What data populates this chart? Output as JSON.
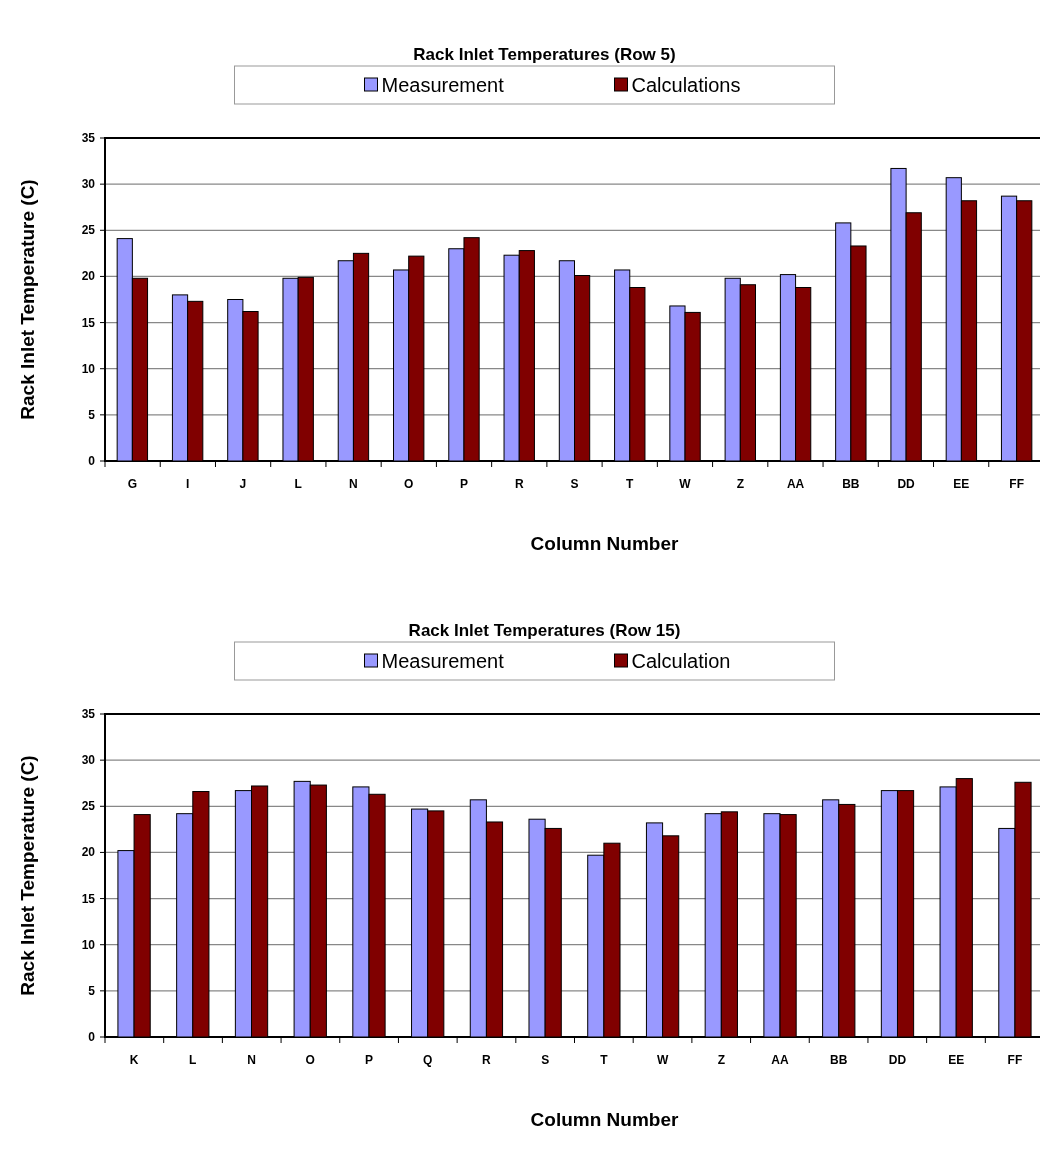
{
  "chart_data": [
    {
      "type": "bar",
      "title": "Rack Inlet Temperatures (Row 5)",
      "xlabel": "Column Number",
      "ylabel": "Rack Inlet Temperature (C)",
      "categories": [
        "G",
        "I",
        "J",
        "L",
        "N",
        "O",
        "P",
        "R",
        "S",
        "T",
        "W",
        "Z",
        "AA",
        "BB",
        "DD",
        "EE",
        "FF"
      ],
      "series": [
        {
          "name": "Measurement",
          "color": "#9999ff",
          "values": [
            24.1,
            18.0,
            17.5,
            19.8,
            21.7,
            20.7,
            23.0,
            22.3,
            21.7,
            20.7,
            16.8,
            19.8,
            20.2,
            25.8,
            31.7,
            30.7,
            28.7
          ]
        },
        {
          "name": "Calculations",
          "color": "#800000",
          "values": [
            19.8,
            17.3,
            16.2,
            19.9,
            22.5,
            22.2,
            24.2,
            22.8,
            20.1,
            18.8,
            16.1,
            19.1,
            18.8,
            23.3,
            26.9,
            28.2,
            28.2
          ]
        }
      ],
      "ylim": [
        0,
        35
      ],
      "yticks": [
        0,
        5,
        10,
        15,
        20,
        25,
        30,
        35
      ],
      "grid": "y",
      "legend": "top"
    },
    {
      "type": "bar",
      "title": "Rack Inlet Temperatures (Row 15)",
      "xlabel": "Column Number",
      "ylabel": "Rack Inlet Temperature (C)",
      "categories": [
        "K",
        "L",
        "N",
        "O",
        "P",
        "Q",
        "R",
        "S",
        "T",
        "W",
        "Z",
        "AA",
        "BB",
        "DD",
        "EE",
        "FF"
      ],
      "series": [
        {
          "name": "Measurement",
          "color": "#9999ff",
          "values": [
            20.2,
            24.2,
            26.7,
            27.7,
            27.1,
            24.7,
            25.7,
            23.6,
            19.7,
            23.2,
            24.2,
            24.2,
            25.7,
            26.7,
            27.1,
            22.6
          ]
        },
        {
          "name": "Calculation",
          "color": "#800000",
          "values": [
            24.1,
            26.6,
            27.2,
            27.3,
            26.3,
            24.5,
            23.3,
            22.6,
            21.0,
            21.8,
            24.4,
            24.1,
            25.2,
            26.7,
            28.0,
            27.6
          ]
        }
      ],
      "ylim": [
        0,
        35
      ],
      "yticks": [
        0,
        5,
        10,
        15,
        20,
        25,
        30,
        35
      ],
      "grid": "y",
      "legend": "top"
    }
  ]
}
